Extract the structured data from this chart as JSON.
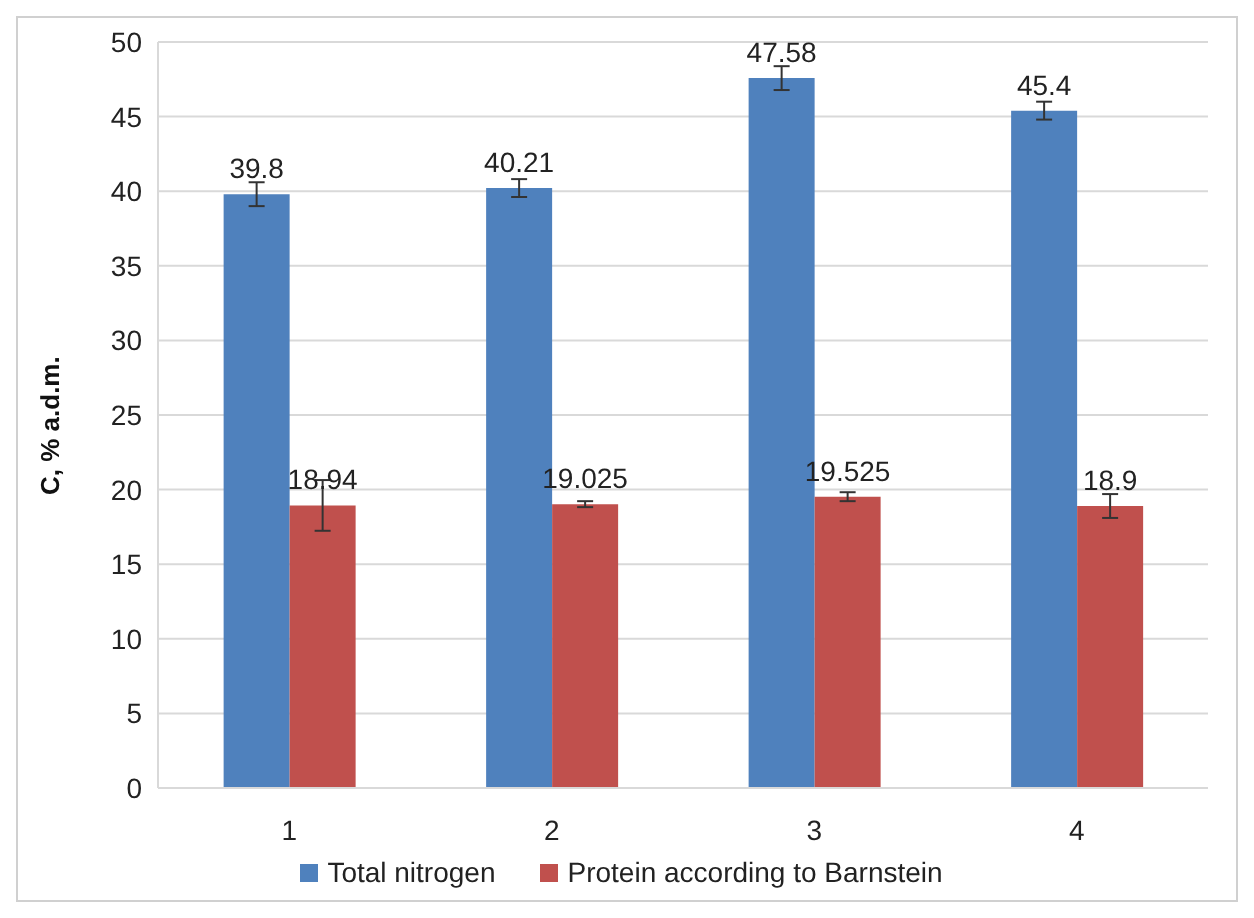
{
  "chart_data": {
    "type": "bar",
    "ylabel": "C, % a.d.m.",
    "categories": [
      "1",
      "2",
      "3",
      "4"
    ],
    "series": [
      {
        "name": "Total nitrogen",
        "color": "#4f81bd",
        "values": [
          39.8,
          40.21,
          47.58,
          45.4
        ],
        "errors": [
          0.8,
          0.6,
          0.8,
          0.6
        ]
      },
      {
        "name": "Protein according to Barnstein",
        "color": "#c0504d",
        "values": [
          18.94,
          19.025,
          19.525,
          18.9
        ],
        "errors": [
          1.7,
          0.2,
          0.3,
          0.8
        ]
      }
    ],
    "ylim": [
      0,
      50
    ],
    "yticks": [
      0,
      5,
      10,
      15,
      20,
      25,
      30,
      35,
      40,
      45,
      50
    ],
    "grid": "y",
    "legend": "bottom",
    "data_labels": true
  }
}
